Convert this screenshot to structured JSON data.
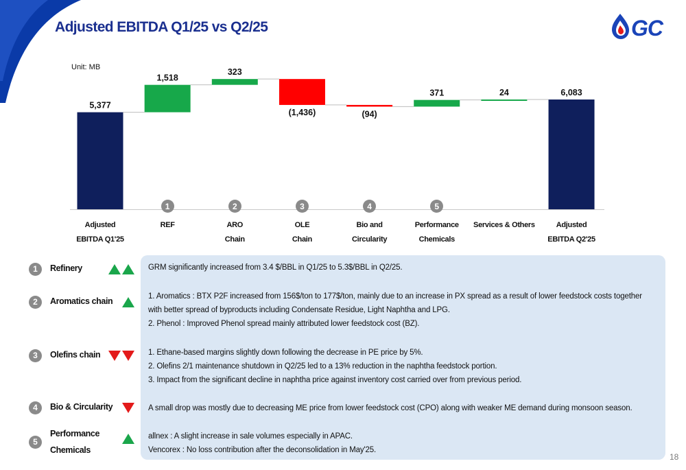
{
  "header": {
    "title": "Adjusted EBITDA Q1/25 vs Q2/25",
    "logo_text": "GC",
    "unit": "Unit: MB"
  },
  "colors": {
    "total": "#0f1f5c",
    "increase": "#17a84a",
    "decrease": "#ff0000",
    "title": "#1a2f8f",
    "panel": "#dbe7f4",
    "corner": "#0a3aa8"
  },
  "chart_data": {
    "type": "bar",
    "subtype": "waterfall",
    "categories": [
      [
        "Adjusted",
        "EBITDA Q1'25"
      ],
      [
        "REF"
      ],
      [
        "ARO",
        "Chain"
      ],
      [
        "OLE",
        "Chain"
      ],
      [
        "Bio and",
        "Circularity"
      ],
      [
        "Performance",
        "Chemicals"
      ],
      [
        "Services & Others"
      ],
      [
        "Adjusted",
        "EBITDA Q2'25"
      ]
    ],
    "values": [
      5377,
      1518,
      323,
      -1436,
      -94,
      371,
      24,
      6083
    ],
    "measures": [
      "total",
      "relative",
      "relative",
      "relative",
      "relative",
      "relative",
      "relative",
      "total"
    ],
    "data_labels": [
      "5,377",
      "1,518",
      "323",
      "(1,436)",
      "(94)",
      "371",
      "24",
      "6,083"
    ],
    "badges": [
      "",
      "1",
      "2",
      "3",
      "4",
      "5",
      "",
      ""
    ],
    "ylim": [
      0,
      7000
    ],
    "grid": false,
    "legend": "none"
  },
  "drivers": [
    {
      "num": "1",
      "label": [
        "Refinery"
      ],
      "trend": "up",
      "count": 2
    },
    {
      "num": "2",
      "label": [
        "Aromatics chain"
      ],
      "trend": "up",
      "count": 1
    },
    {
      "num": "3",
      "label": [
        "Olefins chain"
      ],
      "trend": "down",
      "count": 2
    },
    {
      "num": "4",
      "label": [
        "Bio & Circularity"
      ],
      "trend": "down",
      "count": 1
    },
    {
      "num": "5",
      "label": [
        "Performance",
        "Chemicals"
      ],
      "trend": "up",
      "count": 1
    }
  ],
  "commentary": [
    "GRM significantly increased from 3.4 $/BBL in Q1/25 to 5.3$/BBL in Q2/25.",
    "1. Aromatics : BTX P2F increased from 156$/ton to 177$/ton, mainly due to an increase in PX spread as a result of lower feedstock costs together",
    "with better spread of byproducts including Condensate Residue, Light Naphtha and LPG.",
    "2. Phenol : Improved Phenol spread mainly attributed lower feedstock cost (BZ).",
    "1.  Ethane-based margins slightly down following the decrease in PE price by 5%.",
    "2.  Olefins 2/1 maintenance shutdown in Q2/25 led to a 13% reduction in the naphtha feedstock portion.",
    "3.  Impact from the significant decline in naphtha price against inventory cost carried over from previous period.",
    "A small drop was mostly due to decreasing ME price from lower feedstock cost (CPO) along with weaker ME demand during monsoon season.",
    "allnex :  A slight increase in sale volumes especially in APAC.",
    "Vencorex : No loss contribution after the deconsolidation in May'25."
  ],
  "page_number": "18"
}
